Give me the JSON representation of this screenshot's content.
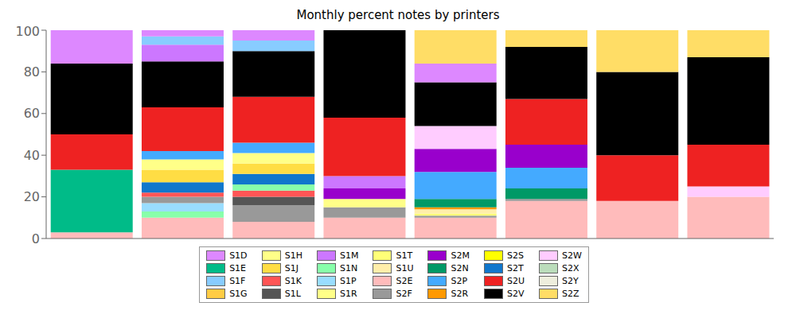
{
  "chart_data": {
    "type": "bar",
    "title": "Monthly percent notes by printers",
    "stacked": true,
    "grid": false,
    "legend": "bottom",
    "tick_labels": "y",
    "ylim": [
      0,
      100
    ],
    "yticks": [
      0,
      20,
      40,
      60,
      80,
      100
    ],
    "categories": [
      null,
      null,
      null,
      null,
      null,
      null,
      null,
      null
    ],
    "series": [
      {
        "name": "S1D",
        "color": "#dd88ff",
        "values": [
          16,
          3,
          5,
          null,
          9,
          null,
          null,
          null
        ]
      },
      {
        "name": "S1H",
        "color": "#ffff88",
        "values": [
          null,
          5,
          5,
          null,
          null,
          null,
          null,
          null
        ]
      },
      {
        "name": "S1M",
        "color": "#cc77ff",
        "values": [
          null,
          8,
          null,
          6,
          null,
          null,
          null,
          null
        ]
      },
      {
        "name": "S1T",
        "color": "#ffff77",
        "values": [
          null,
          null,
          null,
          null,
          1,
          null,
          null,
          null
        ]
      },
      {
        "name": "S2M",
        "color": "#9900cc",
        "values": [
          null,
          null,
          null,
          5,
          11,
          11,
          null,
          null
        ]
      },
      {
        "name": "S2S",
        "color": "#ffff00",
        "values": [
          null,
          null,
          null,
          null,
          null,
          null,
          null,
          null
        ]
      },
      {
        "name": "S2W",
        "color": "#ffccff",
        "values": [
          null,
          null,
          null,
          null,
          11,
          null,
          null,
          5
        ]
      },
      {
        "name": "S1E",
        "color": "#00bb88",
        "values": [
          30,
          null,
          null,
          null,
          null,
          null,
          null,
          null
        ]
      },
      {
        "name": "S1J",
        "color": "#ffdd44",
        "values": [
          null,
          6,
          5,
          null,
          null,
          null,
          null,
          null
        ]
      },
      {
        "name": "S1N",
        "color": "#88ffaa",
        "values": [
          null,
          3,
          3,
          null,
          null,
          null,
          null,
          null
        ]
      },
      {
        "name": "S1U",
        "color": "#ffeeaa",
        "values": [
          null,
          null,
          null,
          null,
          2,
          null,
          null,
          null
        ]
      },
      {
        "name": "S2N",
        "color": "#009966",
        "values": [
          null,
          null,
          null,
          null,
          4,
          5,
          null,
          null
        ]
      },
      {
        "name": "S2T",
        "color": "#1177cc",
        "values": [
          null,
          5,
          5,
          null,
          null,
          null,
          null,
          null
        ]
      },
      {
        "name": "S2X",
        "color": "#bbddbb",
        "values": [
          null,
          null,
          null,
          null,
          null,
          null,
          null,
          null
        ]
      },
      {
        "name": "S1F",
        "color": "#88ccff",
        "values": [
          null,
          4,
          5,
          null,
          null,
          null,
          null,
          null
        ]
      },
      {
        "name": "S1K",
        "color": "#ff5555",
        "values": [
          null,
          2,
          3,
          null,
          null,
          null,
          null,
          null
        ]
      },
      {
        "name": "S1P",
        "color": "#99ddff",
        "values": [
          null,
          4,
          null,
          null,
          null,
          null,
          null,
          null
        ]
      },
      {
        "name": "S2E",
        "color": "#ffbbbb",
        "values": [
          3,
          10,
          8,
          10,
          10,
          18,
          18,
          20
        ]
      },
      {
        "name": "S2P",
        "color": "#44aaff",
        "values": [
          null,
          4,
          5,
          null,
          13,
          10,
          null,
          null
        ]
      },
      {
        "name": "S2U",
        "color": "#ee2222",
        "values": [
          17,
          21,
          22,
          28,
          null,
          22,
          22,
          20
        ]
      },
      {
        "name": "S2Y",
        "color": "#eeeedd",
        "values": [
          null,
          null,
          null,
          null,
          null,
          null,
          null,
          null
        ]
      },
      {
        "name": "S1G",
        "color": "#ffcc44",
        "values": [
          null,
          null,
          null,
          null,
          null,
          null,
          null,
          null
        ]
      },
      {
        "name": "S1L",
        "color": "#555555",
        "values": [
          null,
          null,
          4,
          null,
          null,
          null,
          null,
          null
        ]
      },
      {
        "name": "S1R",
        "color": "#ffff88",
        "values": [
          null,
          null,
          null,
          4,
          null,
          null,
          null,
          null
        ]
      },
      {
        "name": "S2F",
        "color": "#999999",
        "values": [
          null,
          3,
          8,
          5,
          1,
          1,
          null,
          null
        ]
      },
      {
        "name": "S2R",
        "color": "#ff9900",
        "values": [
          null,
          null,
          null,
          null,
          1,
          null,
          null,
          null
        ]
      },
      {
        "name": "S2V",
        "color": "#000000",
        "values": [
          34,
          22,
          22,
          42,
          21,
          25,
          40,
          42
        ]
      },
      {
        "name": "S2Z",
        "color": "#ffdd66",
        "values": [
          null,
          null,
          null,
          null,
          16,
          8,
          20,
          13
        ]
      }
    ],
    "stack_order": [
      [
        "S2E",
        "S1E",
        "S2U",
        "S2V",
        "S1D"
      ],
      [
        "S2E",
        "S1N",
        "S1P",
        "S2F",
        "S1K",
        "S2T",
        "S1J",
        "S1H",
        "S2P",
        "S2U",
        "S2V",
        "S1M",
        "S1F",
        "S1D"
      ],
      [
        "S2E",
        "S2F",
        "S1L",
        "S1K",
        "S1N",
        "S2T",
        "S1J",
        "S1H",
        "S2P",
        "S2U",
        "S2V",
        "S1F",
        "S1D"
      ],
      [
        "S2E",
        "S2F",
        "S1R",
        "S2M",
        "S1M",
        "S2U",
        "S2V"
      ],
      [
        "S2E",
        "S2F",
        "S1T",
        "S1U",
        "S2R",
        "S2N",
        "S2P",
        "S2M",
        "S2W",
        "S2V",
        "S1D",
        "S2Z"
      ],
      [
        "S2E",
        "S2F",
        "S2N",
        "S2P",
        "S2M",
        "S2U",
        "S2V",
        "S2Z"
      ],
      [
        "S2E",
        "S2U",
        "S2V",
        "S2Z"
      ],
      [
        "S2E",
        "S2W",
        "S2U",
        "S2V",
        "S2Z"
      ]
    ]
  }
}
